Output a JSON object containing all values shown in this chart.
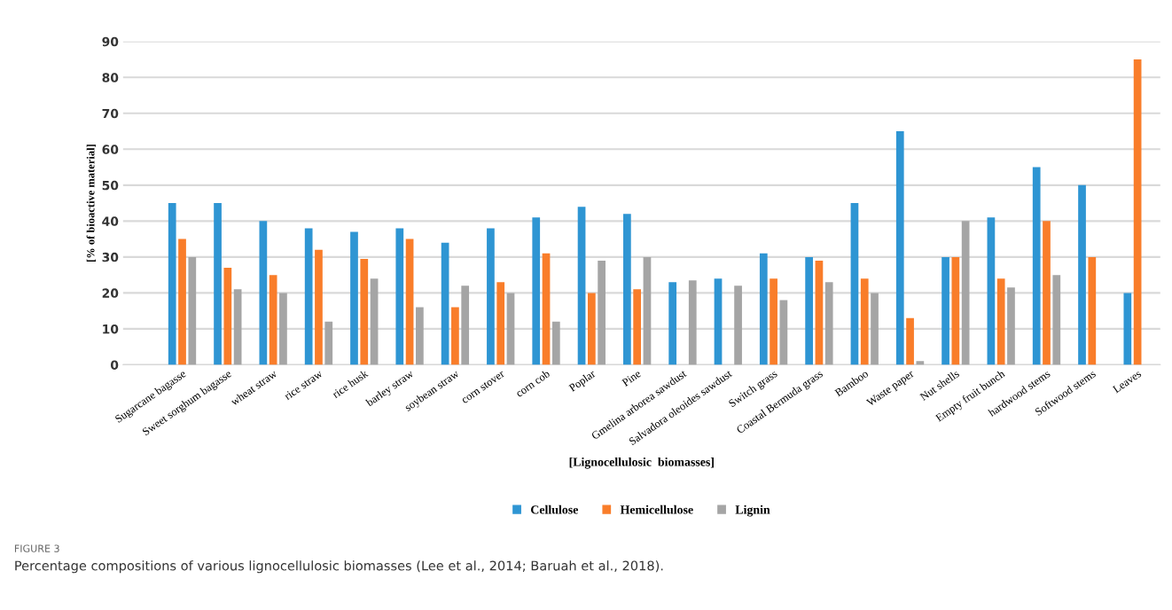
{
  "chart_data": {
    "type": "bar",
    "xlabel": "[Lignocellulosic  biomasses]",
    "ylabel": "[% of bioactive material]",
    "categories": [
      "Sugarcane bagasse",
      "Sweet sorghum bagasse",
      "wheat straw",
      "rice straw",
      "rice husk",
      "barley straw",
      "soybean straw",
      "corn stover",
      "corn cob",
      "Poplar",
      "Pine",
      "Gmelina arborea sawdust",
      "Salvadora oleoides sawdust",
      "Switch grass",
      "Coastal Bermuda grass",
      "Bamboo",
      "Waste paper",
      "Nut shells",
      "Empty fruit bunch",
      "hardwood stems",
      "Softwood stems",
      "Leaves"
    ],
    "series": [
      {
        "name": "Cellulose",
        "color": "#2e95d3",
        "values": [
          45,
          45,
          40,
          38,
          37,
          38,
          34,
          38,
          41,
          44,
          42,
          23,
          24,
          31,
          30,
          45,
          65,
          30,
          41,
          55,
          50,
          20
        ]
      },
      {
        "name": "Hemicellulose",
        "color": "#f97d2a",
        "values": [
          35,
          27,
          25,
          32,
          29.5,
          35,
          16,
          23,
          31,
          20,
          21,
          null,
          null,
          24,
          29,
          24,
          13,
          30,
          24,
          40,
          30,
          85
        ]
      },
      {
        "name": "Lignin",
        "color": "#a5a5a5",
        "values": [
          30,
          21,
          20,
          12,
          24,
          16,
          22,
          20,
          12,
          29,
          30,
          23.5,
          22,
          18,
          23,
          20,
          1,
          40,
          21.5,
          25,
          null,
          null
        ]
      }
    ],
    "ylim": [
      0,
      90
    ],
    "yticks": [
      0,
      10,
      20,
      30,
      40,
      50,
      60,
      70,
      80,
      90
    ],
    "grid": "y",
    "legend": "bottom",
    "annotations": [
      "FIGURE 3",
      "Percentage compositions of various lignocellulosic biomasses (Lee et al., 2014; Baruah et al., 2018)."
    ]
  }
}
